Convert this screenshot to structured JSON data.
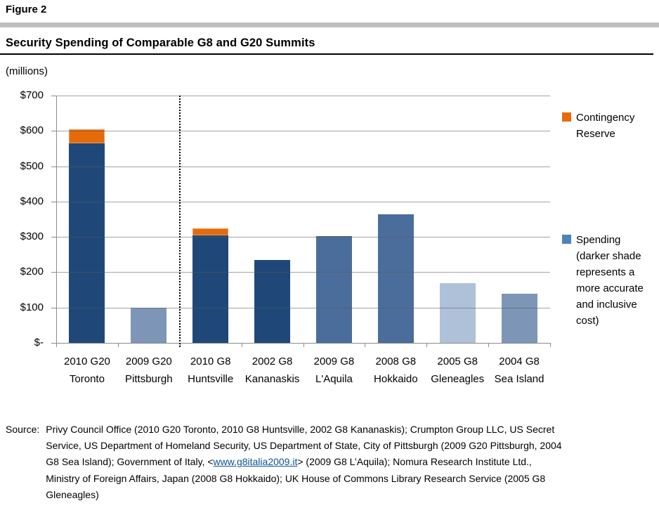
{
  "figure_label": "Figure 2",
  "title": "Security Spending of Comparable G8 and G20 Summits",
  "units_label": "(millions)",
  "legend": {
    "contingency": {
      "label": "Contingency Reserve",
      "color": "#E56B0A"
    },
    "spending": {
      "label": "Spending (darker shade represents a more accurate and inclusive cost)",
      "color": "#4F81BD"
    }
  },
  "chart_data": {
    "type": "bar",
    "stacked": true,
    "title": "Security Spending of Comparable G8 and G20 Summits",
    "units": "$ millions",
    "ylim": [
      0,
      700
    ],
    "ytick_step": 100,
    "ytick_labels": [
      "$-",
      "$100",
      "$200",
      "$300",
      "$400",
      "$500",
      "$600",
      "$700"
    ],
    "grid": true,
    "legend_position": "right",
    "group_separator_after": "2009 G20 Pittsburgh",
    "categories": [
      "2010 G20 Toronto",
      "2009 G20 Pittsburgh",
      "2010 G8 Huntsville",
      "2002 G8 Kananaskis",
      "2009 G8 L'Aquila",
      "2008 G8 Hokkaido",
      "2005 G8 Gleneagles",
      "2004 G8 Sea Island"
    ],
    "series": [
      {
        "name": "Spending",
        "values": [
          565,
          100,
          305,
          235,
          303,
          364,
          169,
          140
        ]
      },
      {
        "name": "Contingency Reserve",
        "values": [
          40,
          0,
          20,
          0,
          0,
          0,
          0,
          0
        ]
      }
    ],
    "bars": [
      {
        "label_line1": "2010 G20",
        "label_line2": "Toronto",
        "spending": 565,
        "contingency": 40,
        "shade": "dark"
      },
      {
        "label_line1": "2009 G20",
        "label_line2": "Pittsburgh",
        "spending": 100,
        "contingency": 0,
        "shade": "light"
      },
      {
        "label_line1": "2010 G8",
        "label_line2": "Huntsville",
        "spending": 305,
        "contingency": 20,
        "shade": "dark"
      },
      {
        "label_line1": "2002 G8",
        "label_line2": "Kananaskis",
        "spending": 235,
        "contingency": 0,
        "shade": "dark"
      },
      {
        "label_line1": "2009 G8",
        "label_line2": "L'Aquila",
        "spending": 303,
        "contingency": 0,
        "shade": "medium"
      },
      {
        "label_line1": "2008 G8",
        "label_line2": "Hokkaido",
        "spending": 364,
        "contingency": 0,
        "shade": "medium"
      },
      {
        "label_line1": "2005 G8",
        "label_line2": "Gleneagles",
        "spending": 169,
        "contingency": 0,
        "shade": "lighter"
      },
      {
        "label_line1": "2004 G8",
        "label_line2": "Sea Island",
        "spending": 140,
        "contingency": 0,
        "shade": "light"
      }
    ],
    "shade_colors": {
      "dark": "#1F4878",
      "medium": "#4A6D9B",
      "light": "#7D96B7",
      "lighter": "#AEC1D8"
    },
    "contingency_color": "#E56B0A",
    "contingency_border": "#F09A5A"
  },
  "source": {
    "label": "Source:",
    "lines": [
      "Privy Council Office (2010 G20 Toronto, 2010 G8 Huntsville, 2002 G8 Kananaskis); Crumpton Group LLC, US Secret",
      "Service, US Department of Homeland Security, US Department of State, City of Pittsburgh (2009 G20 Pittsburgh, 2004",
      {
        "pre": "G8 Sea Island); Government of Italy, <",
        "link": "www.g8italia2009.it",
        "post": "> (2009 G8 L’Aquila); Nomura Research Institute Ltd.,"
      },
      "Ministry of Foreign Affairs, Japan (2008 G8 Hokkaido); UK House of Commons Library Research Service (2005 G8",
      "Gleneagles)"
    ],
    "link_color": "#0B5394"
  }
}
